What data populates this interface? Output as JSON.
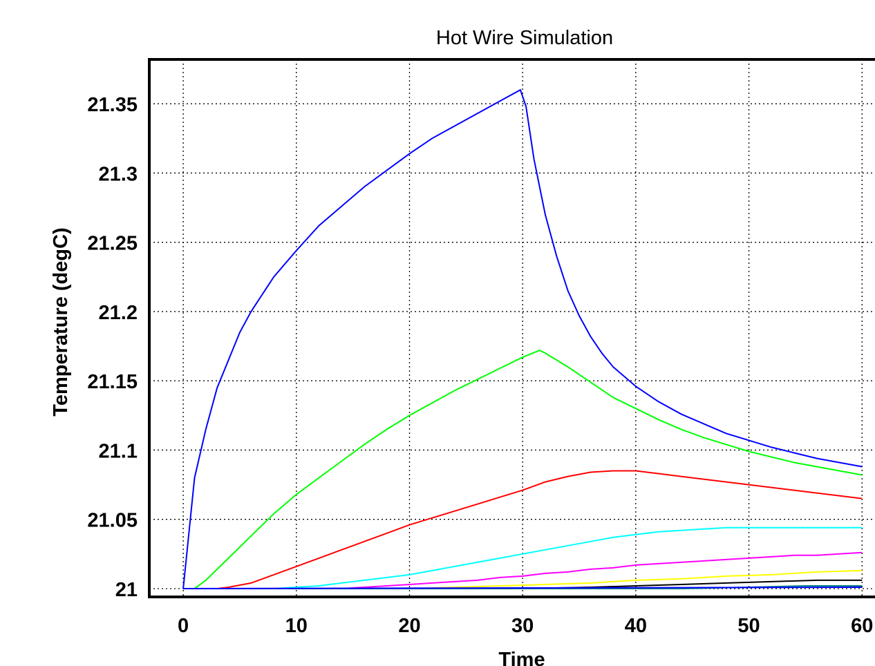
{
  "chart_data": {
    "type": "line",
    "title": "Hot Wire Simulation",
    "xlabel": "Time",
    "ylabel": "Temperature (degC)",
    "xlim": [
      -3,
      62
    ],
    "ylim": [
      20.994,
      21.382
    ],
    "xticks": [
      0,
      10,
      20,
      30,
      40,
      50,
      60
    ],
    "xtick_labels": [
      "0",
      "10",
      "20",
      "30",
      "40",
      "50",
      "60"
    ],
    "yticks": [
      21,
      21.05,
      21.1,
      21.15,
      21.2,
      21.25,
      21.3,
      21.35
    ],
    "ytick_labels": [
      "21",
      "21.05",
      "21.1",
      "21.15",
      "21.2",
      "21.25",
      "21.3",
      "21.35"
    ],
    "grid": true,
    "series": [
      {
        "color": "#0000ff",
        "x": [
          0,
          1,
          2,
          3,
          4,
          5,
          6,
          8,
          10,
          12,
          14,
          16,
          18,
          20,
          22,
          24,
          26,
          28,
          29.8,
          30.3,
          31,
          32,
          33,
          34,
          35,
          36,
          37,
          38,
          40,
          42,
          44,
          46,
          48,
          50,
          52,
          54,
          56,
          58,
          60
        ],
        "y": [
          21,
          21.08,
          21.115,
          21.145,
          21.165,
          21.185,
          21.2,
          21.225,
          21.244,
          21.262,
          21.276,
          21.29,
          21.302,
          21.314,
          21.325,
          21.334,
          21.343,
          21.352,
          21.36,
          21.348,
          21.31,
          21.27,
          21.24,
          21.215,
          21.197,
          21.182,
          21.17,
          21.16,
          21.146,
          21.135,
          21.126,
          21.119,
          21.112,
          21.107,
          21.102,
          21.098,
          21.094,
          21.091,
          21.088
        ]
      },
      {
        "color": "#00ff00",
        "x": [
          0,
          1,
          2,
          4,
          6,
          8,
          10,
          12,
          14,
          16,
          18,
          20,
          22,
          24,
          26,
          28,
          30,
          31.5,
          32,
          34,
          36,
          38,
          40,
          42,
          44,
          46,
          48,
          50,
          52,
          54,
          56,
          58,
          60
        ],
        "y": [
          21,
          21,
          21.006,
          21.022,
          21.038,
          21.054,
          21.068,
          21.08,
          21.092,
          21.104,
          21.115,
          21.125,
          21.134,
          21.143,
          21.151,
          21.159,
          21.167,
          21.172,
          21.17,
          21.16,
          21.149,
          21.138,
          21.13,
          21.122,
          21.115,
          21.109,
          21.104,
          21.099,
          21.095,
          21.091,
          21.088,
          21.085,
          21.082
        ]
      },
      {
        "color": "#ff0000",
        "x": [
          0,
          3,
          4,
          6,
          8,
          10,
          12,
          14,
          16,
          18,
          20,
          22,
          24,
          26,
          28,
          30,
          32,
          34,
          36,
          38,
          40,
          42,
          44,
          46,
          48,
          50,
          52,
          54,
          56,
          58,
          60
        ],
        "y": [
          21,
          21,
          21.001,
          21.004,
          21.01,
          21.016,
          21.022,
          21.028,
          21.034,
          21.04,
          21.046,
          21.051,
          21.056,
          21.061,
          21.066,
          21.071,
          21.077,
          21.081,
          21.084,
          21.085,
          21.085,
          21.083,
          21.081,
          21.079,
          21.077,
          21.075,
          21.073,
          21.071,
          21.069,
          21.067,
          21.065
        ]
      },
      {
        "color": "#00ffff",
        "x": [
          0,
          8,
          10,
          12,
          14,
          16,
          18,
          20,
          22,
          24,
          26,
          28,
          30,
          32,
          34,
          36,
          38,
          40,
          42,
          44,
          46,
          48,
          50,
          52,
          54,
          56,
          58,
          60
        ],
        "y": [
          21,
          21,
          21.001,
          21.002,
          21.004,
          21.006,
          21.008,
          21.01,
          21.013,
          21.016,
          21.019,
          21.022,
          21.025,
          21.028,
          21.031,
          21.034,
          21.037,
          21.039,
          21.041,
          21.042,
          21.043,
          21.044,
          21.044,
          21.044,
          21.044,
          21.044,
          21.044,
          21.044
        ]
      },
      {
        "color": "#ff00ff",
        "x": [
          0,
          14,
          16,
          18,
          20,
          22,
          24,
          26,
          28,
          30,
          32,
          34,
          36,
          38,
          40,
          42,
          44,
          46,
          48,
          50,
          52,
          54,
          56,
          58,
          60
        ],
        "y": [
          21,
          21,
          21.001,
          21.002,
          21.003,
          21.004,
          21.005,
          21.006,
          21.008,
          21.009,
          21.011,
          21.012,
          21.014,
          21.015,
          21.017,
          21.018,
          21.019,
          21.02,
          21.021,
          21.022,
          21.023,
          21.024,
          21.024,
          21.025,
          21.026
        ]
      },
      {
        "color": "#ffff00",
        "x": [
          0,
          20,
          24,
          28,
          32,
          36,
          40,
          44,
          48,
          52,
          56,
          60
        ],
        "y": [
          21,
          21,
          21.001,
          21.002,
          21.003,
          21.004,
          21.006,
          21.007,
          21.009,
          21.01,
          21.012,
          21.013
        ]
      },
      {
        "color": "#000000",
        "x": [
          0,
          30,
          36,
          40,
          44,
          48,
          52,
          56,
          60
        ],
        "y": [
          21,
          21,
          21.001,
          21.002,
          21.003,
          21.004,
          21.005,
          21.006,
          21.006
        ]
      },
      {
        "color": "#008080",
        "x": [
          0,
          44,
          50,
          55,
          60
        ],
        "y": [
          21,
          21,
          21.001,
          21.002,
          21.002
        ]
      },
      {
        "color": "#0000ff",
        "x": [
          0,
          60
        ],
        "y": [
          21,
          21.001
        ]
      }
    ]
  }
}
